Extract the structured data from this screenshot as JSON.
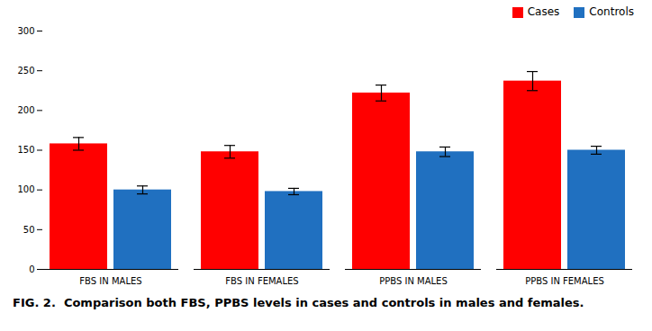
{
  "chart_data": {
    "type": "bar",
    "caption": "FIG. 2.  Comparison both FBS, PPBS levels in cases and controls in males and females.",
    "categories": [
      "FBS IN MALES",
      "FBS IN FEMALES",
      "PPBS IN MALES",
      "PPBS IN FEMALES"
    ],
    "series": [
      {
        "name": "Cases",
        "color": "#ff0000",
        "values": [
          158,
          148,
          222,
          237
        ],
        "errors": [
          8,
          8,
          10,
          12
        ]
      },
      {
        "name": "Controls",
        "color": "#2070c0",
        "values": [
          100,
          98,
          148,
          150
        ],
        "errors": [
          5,
          4,
          6,
          5
        ]
      }
    ],
    "ylim": [
      0,
      300
    ],
    "yticks": [
      0,
      50,
      100,
      150,
      200,
      250,
      300
    ],
    "grid": false,
    "legend": "top"
  }
}
